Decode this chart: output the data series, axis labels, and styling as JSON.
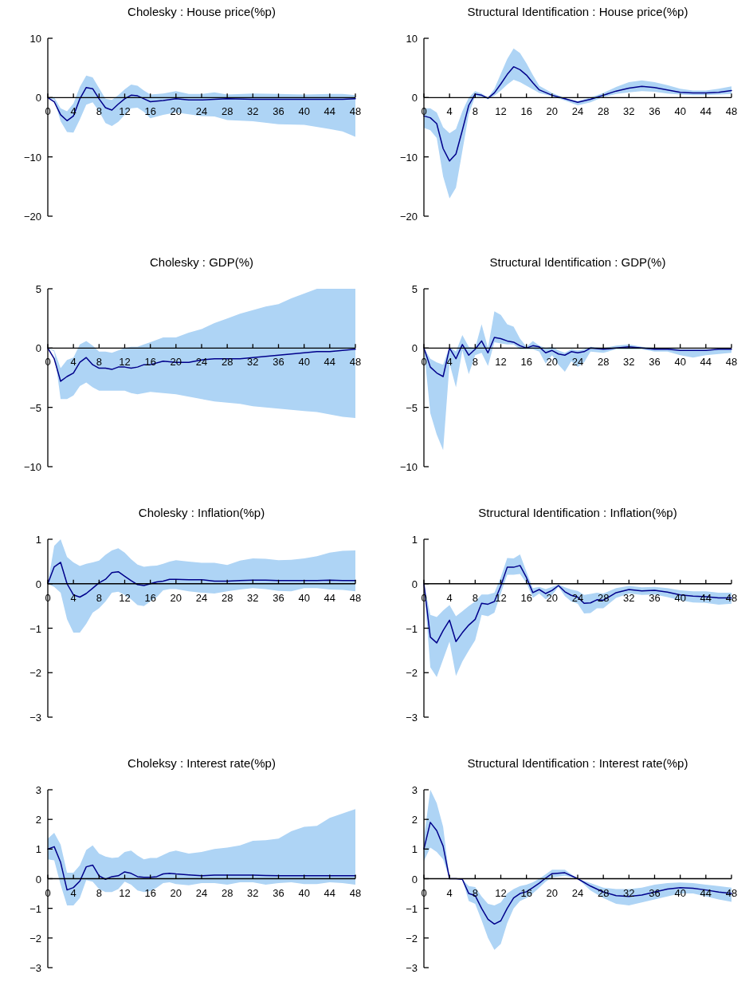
{
  "chart_data": [
    {
      "type": "line",
      "title": "Cholesky : House price(%p)",
      "xlim": [
        0,
        48
      ],
      "xticks": [
        0,
        4,
        8,
        12,
        16,
        20,
        24,
        28,
        32,
        36,
        40,
        44,
        48
      ],
      "ylim": [
        -20,
        10
      ],
      "yticks": [
        -20,
        -10,
        0,
        10
      ],
      "series": [
        {
          "color": "#00008b",
          "x": [
            0,
            1,
            2,
            3,
            4,
            5,
            6,
            7,
            8,
            9,
            10,
            11,
            12,
            13,
            14,
            15,
            16,
            18,
            20,
            22,
            24,
            26,
            28,
            32,
            36,
            40,
            44,
            46,
            48
          ],
          "values": [
            0,
            -0.7,
            -2.9,
            -3.9,
            -3.1,
            -0.2,
            1.7,
            1.5,
            -0.2,
            -1.7,
            -2.1,
            -1.1,
            -0.2,
            0.4,
            0.3,
            -0.2,
            -0.7,
            -0.5,
            -0.2,
            -0.4,
            -0.4,
            -0.3,
            -0.2,
            -0.3,
            -0.3,
            -0.3,
            -0.3,
            -0.3,
            -0.2
          ],
          "upper": [
            0,
            0,
            -1.8,
            -2.3,
            -1.0,
            1.8,
            3.7,
            3.4,
            1.6,
            -0.2,
            -0.4,
            0.4,
            1.4,
            2.2,
            2.0,
            1.2,
            0.5,
            0.7,
            1.1,
            0.6,
            0.6,
            0.9,
            0.5,
            0.7,
            0.6,
            0.5,
            0.6,
            0.6,
            0.4
          ],
          "lower": [
            0,
            -0.4,
            -4.0,
            -5.8,
            -5.9,
            -3.7,
            -1.2,
            -0.8,
            -2.3,
            -4.3,
            -4.8,
            -4.1,
            -2.9,
            -1.8,
            -1.7,
            -2.4,
            -3.5,
            -2.9,
            -2.5,
            -2.8,
            -3.1,
            -3.2,
            -3.8,
            -4.0,
            -4.5,
            -4.6,
            -5.3,
            -5.7,
            -6.6
          ]
        }
      ]
    },
    {
      "type": "line",
      "title": "Structural Identification : House price(%p)",
      "xlim": [
        0,
        48
      ],
      "xticks": [
        0,
        4,
        8,
        12,
        16,
        20,
        24,
        28,
        32,
        36,
        40,
        44,
        48
      ],
      "ylim": [
        -20,
        10
      ],
      "yticks": [
        -20,
        -10,
        0,
        10
      ],
      "series": [
        {
          "color": "#00008b",
          "x": [
            0,
            1,
            2,
            3,
            4,
            5,
            6,
            7,
            8,
            9,
            10,
            11,
            12,
            13,
            14,
            15,
            16,
            17,
            18,
            20,
            22,
            24,
            26,
            28,
            30,
            32,
            34,
            36,
            38,
            40,
            42,
            44,
            46,
            48
          ],
          "values": [
            -3.1,
            -3.4,
            -4.4,
            -8.6,
            -10.7,
            -9.5,
            -5.5,
            -1.3,
            0.6,
            0.4,
            -0.1,
            0.8,
            2.3,
            3.9,
            5.2,
            4.7,
            3.8,
            2.5,
            1.3,
            0.4,
            -0.2,
            -0.8,
            -0.3,
            0.4,
            1.1,
            1.6,
            1.9,
            1.7,
            1.3,
            0.9,
            0.8,
            0.8,
            0.9,
            1.2
          ],
          "upper": [
            -1.8,
            -1.8,
            -2.5,
            -5.0,
            -6.0,
            -5.3,
            -2.3,
            0.0,
            1.1,
            0.7,
            0.0,
            1.5,
            4.0,
            6.5,
            8.3,
            7.5,
            5.8,
            3.8,
            2.0,
            0.8,
            -0.1,
            -0.6,
            0,
            0.8,
            1.8,
            2.6,
            2.9,
            2.6,
            2.1,
            1.5,
            1.2,
            1.2,
            1.5,
            1.9
          ],
          "lower": [
            -5.1,
            -5.5,
            -6.8,
            -13.3,
            -17.0,
            -15.2,
            -9,
            -2.8,
            0.2,
            0.1,
            -0.3,
            0.3,
            1.2,
            2.2,
            3.0,
            2.6,
            2.0,
            1.4,
            0.8,
            0.2,
            -0.5,
            -1.3,
            -0.8,
            0.1,
            0.6,
            0.9,
            1.1,
            1.0,
            0.7,
            0.5,
            0.4,
            0.4,
            0.5,
            0.6
          ]
        }
      ]
    },
    {
      "type": "line",
      "title": "Cholesky : GDP(%)",
      "xlim": [
        0,
        48
      ],
      "xticks": [
        0,
        4,
        8,
        12,
        16,
        20,
        24,
        28,
        32,
        36,
        40,
        44,
        48
      ],
      "ylim": [
        -10,
        5
      ],
      "yticks": [
        -10,
        -5,
        0,
        5
      ],
      "series": [
        {
          "color": "#00008b",
          "x": [
            0,
            1,
            2,
            3,
            4,
            5,
            6,
            7,
            8,
            9,
            10,
            11,
            12,
            13,
            14,
            15,
            16,
            18,
            20,
            22,
            24,
            26,
            28,
            30,
            32,
            34,
            36,
            38,
            40,
            42,
            44,
            46,
            48
          ],
          "values": [
            0,
            -0.9,
            -2.8,
            -2.4,
            -2.1,
            -1.2,
            -0.8,
            -1.4,
            -1.7,
            -1.7,
            -1.8,
            -1.6,
            -1.6,
            -1.7,
            -1.6,
            -1.4,
            -1.4,
            -1.1,
            -1.2,
            -1.2,
            -1.0,
            -0.9,
            -0.9,
            -0.9,
            -0.8,
            -0.7,
            -0.6,
            -0.5,
            -0.4,
            -0.3,
            -0.3,
            -0.2,
            -0.1
          ],
          "upper": [
            0,
            -0.2,
            -1.7,
            -1.0,
            -0.8,
            0.3,
            0.6,
            0.2,
            -0.3,
            -0.3,
            -0.4,
            -0.2,
            0,
            0.1,
            0.1,
            0.3,
            0.5,
            0.9,
            0.9,
            1.3,
            1.6,
            2.1,
            2.5,
            2.9,
            3.2,
            3.5,
            3.7,
            4.2,
            4.6,
            5,
            5,
            5,
            5
          ],
          "lower": [
            0,
            -0.3,
            -4.3,
            -4.3,
            -4.0,
            -3.2,
            -2.9,
            -3.3,
            -3.6,
            -3.6,
            -3.6,
            -3.6,
            -3.6,
            -3.8,
            -3.9,
            -3.8,
            -3.7,
            -3.8,
            -3.9,
            -4.1,
            -4.3,
            -4.5,
            -4.6,
            -4.7,
            -4.9,
            -5.0,
            -5.1,
            -5.2,
            -5.3,
            -5.4,
            -5.6,
            -5.8,
            -5.9
          ]
        }
      ]
    },
    {
      "type": "line",
      "title": "Structural Identification : GDP(%)",
      "xlim": [
        0,
        48
      ],
      "xticks": [
        0,
        4,
        8,
        12,
        16,
        20,
        24,
        28,
        32,
        36,
        40,
        44,
        48
      ],
      "ylim": [
        -10,
        5
      ],
      "yticks": [
        -10,
        -5,
        0,
        5
      ],
      "series": [
        {
          "color": "#00008b",
          "x": [
            0,
            1,
            2,
            3,
            4,
            5,
            6,
            7,
            8,
            9,
            10,
            11,
            12,
            13,
            14,
            15,
            16,
            17,
            18,
            19,
            20,
            21,
            22,
            23,
            24,
            25,
            26,
            28,
            30,
            32,
            34,
            36,
            38,
            40,
            42,
            44,
            46,
            48
          ],
          "values": [
            0,
            -1.6,
            -2.1,
            -2.4,
            0,
            -0.9,
            0.3,
            -0.6,
            -0.1,
            0.6,
            -0.4,
            0.9,
            0.8,
            0.6,
            0.5,
            0.2,
            0,
            0.2,
            0.1,
            -0.4,
            -0.2,
            -0.5,
            -0.6,
            -0.3,
            -0.4,
            -0.3,
            0,
            -0.1,
            0,
            0.1,
            0,
            -0.1,
            -0.1,
            -0.2,
            -0.2,
            -0.2,
            -0.1,
            -0.1
          ],
          "upper": [
            0,
            -0.9,
            -1.2,
            -1.4,
            0.1,
            -0.3,
            1.1,
            0.1,
            0,
            2.0,
            0,
            3.1,
            2.8,
            2.0,
            1.8,
            0.8,
            0.1,
            0.6,
            0.2,
            0,
            0.1,
            -0.2,
            -0.4,
            -0.1,
            -0.2,
            -0.1,
            0.1,
            0,
            0.2,
            0.3,
            0.1,
            0,
            0,
            -0.1,
            -0.1,
            -0.1,
            -0.1,
            0
          ],
          "lower": [
            0,
            -5.5,
            -7.3,
            -8.6,
            -1.3,
            -3.3,
            -0.2,
            -2.2,
            -0.6,
            -0.4,
            -1.5,
            0.5,
            0.4,
            0.3,
            0.3,
            -0.1,
            -0.1,
            -0.1,
            -0.3,
            -1.3,
            -0.6,
            -1.4,
            -2.0,
            -1.1,
            -1.6,
            -1.2,
            -0.3,
            -0.4,
            -0.1,
            -0.1,
            -0.1,
            -0.3,
            -0.3,
            -0.6,
            -0.8,
            -0.6,
            -0.5,
            -0.4
          ]
        }
      ]
    },
    {
      "type": "line",
      "title": "Cholesky : Inflation(%p)",
      "xlim": [
        0,
        48
      ],
      "xticks": [
        0,
        4,
        8,
        12,
        16,
        20,
        24,
        28,
        32,
        36,
        40,
        44,
        48
      ],
      "ylim": [
        -3,
        1
      ],
      "yticks": [
        -3,
        -2,
        -1,
        0,
        1
      ],
      "series": [
        {
          "color": "#00008b",
          "x": [
            0,
            1,
            2,
            3,
            4,
            5,
            6,
            7,
            8,
            9,
            10,
            11,
            12,
            13,
            14,
            15,
            16,
            17,
            18,
            19,
            20,
            22,
            24,
            26,
            28,
            30,
            32,
            34,
            36,
            38,
            40,
            42,
            44,
            46,
            48
          ],
          "values": [
            0,
            0.38,
            0.48,
            0,
            -0.25,
            -0.3,
            -0.22,
            -0.1,
            0.02,
            0.1,
            0.25,
            0.27,
            0.17,
            0.07,
            -0.02,
            -0.04,
            0,
            0.04,
            0.06,
            0.1,
            0.1,
            0.09,
            0.09,
            0.06,
            0.06,
            0.07,
            0.08,
            0.08,
            0.07,
            0.07,
            0.07,
            0.07,
            0.08,
            0.07,
            0.07
          ],
          "upper": [
            0,
            0.85,
            1.0,
            0.6,
            0.48,
            0.4,
            0.45,
            0.48,
            0.52,
            0.65,
            0.75,
            0.8,
            0.7,
            0.55,
            0.43,
            0.38,
            0.4,
            0.41,
            0.45,
            0.5,
            0.53,
            0.5,
            0.47,
            0.47,
            0.42,
            0.52,
            0.57,
            0.56,
            0.53,
            0.54,
            0.57,
            0.62,
            0.7,
            0.74,
            0.75
          ],
          "lower": [
            0,
            -0.07,
            -0.2,
            -0.8,
            -1.1,
            -1.1,
            -0.9,
            -0.65,
            -0.55,
            -0.4,
            -0.2,
            -0.18,
            -0.25,
            -0.35,
            -0.48,
            -0.5,
            -0.4,
            -0.3,
            -0.15,
            -0.12,
            -0.12,
            -0.17,
            -0.2,
            -0.22,
            -0.17,
            -0.13,
            -0.1,
            -0.12,
            -0.16,
            -0.17,
            -0.1,
            -0.1,
            -0.13,
            -0.14,
            -0.17
          ]
        }
      ]
    },
    {
      "type": "line",
      "title": "Structural Identification : Inflation(%p)",
      "xlim": [
        0,
        48
      ],
      "xticks": [
        0,
        4,
        8,
        12,
        16,
        20,
        24,
        28,
        32,
        36,
        40,
        44,
        48
      ],
      "ylim": [
        -3,
        1
      ],
      "yticks": [
        -3,
        -2,
        -1,
        0,
        1
      ],
      "series": [
        {
          "color": "#00008b",
          "x": [
            0,
            1,
            2,
            3,
            4,
            5,
            6,
            7,
            8,
            9,
            10,
            11,
            12,
            13,
            14,
            15,
            16,
            17,
            18,
            19,
            20,
            21,
            22,
            23,
            24,
            25,
            26,
            27,
            28,
            30,
            32,
            34,
            36,
            38,
            40,
            42,
            44,
            46,
            48
          ],
          "values": [
            0,
            -1.2,
            -1.33,
            -1.05,
            -0.82,
            -1.3,
            -1.1,
            -0.93,
            -0.8,
            -0.44,
            -0.46,
            -0.4,
            -0.05,
            0.37,
            0.37,
            0.41,
            0.14,
            -0.2,
            -0.13,
            -0.22,
            -0.15,
            -0.04,
            -0.18,
            -0.26,
            -0.3,
            -0.44,
            -0.43,
            -0.36,
            -0.37,
            -0.2,
            -0.13,
            -0.16,
            -0.15,
            -0.19,
            -0.25,
            -0.28,
            -0.29,
            -0.32,
            -0.32
          ],
          "upper": [
            0,
            -0.7,
            -0.75,
            -0.6,
            -0.48,
            -0.73,
            -0.62,
            -0.5,
            -0.4,
            -0.24,
            -0.24,
            -0.2,
            0.15,
            0.58,
            0.57,
            0.66,
            0.27,
            -0.1,
            -0.07,
            -0.12,
            -0.07,
            -0.02,
            -0.08,
            -0.13,
            -0.16,
            -0.25,
            -0.23,
            -0.2,
            -0.22,
            -0.1,
            -0.05,
            -0.08,
            -0.07,
            -0.1,
            -0.15,
            -0.17,
            -0.17,
            -0.2,
            -0.2
          ],
          "lower": [
            0,
            -1.88,
            -2.1,
            -1.7,
            -1.3,
            -2.07,
            -1.75,
            -1.5,
            -1.27,
            -0.7,
            -0.73,
            -0.65,
            -0.22,
            0.2,
            0.2,
            0.22,
            0.02,
            -0.32,
            -0.22,
            -0.35,
            -0.25,
            -0.07,
            -0.28,
            -0.4,
            -0.45,
            -0.67,
            -0.66,
            -0.55,
            -0.55,
            -0.32,
            -0.22,
            -0.25,
            -0.24,
            -0.3,
            -0.37,
            -0.42,
            -0.43,
            -0.47,
            -0.45
          ]
        }
      ]
    },
    {
      "type": "line",
      "title": "Choleksy : Interest rate(%p)",
      "xlim": [
        0,
        48
      ],
      "xticks": [
        0,
        4,
        8,
        12,
        16,
        20,
        24,
        28,
        32,
        36,
        40,
        44,
        48
      ],
      "ylim": [
        -3,
        3
      ],
      "yticks": [
        -3,
        -2,
        -1,
        0,
        1,
        2,
        3
      ],
      "series": [
        {
          "color": "#00008b",
          "x": [
            0,
            1,
            2,
            3,
            4,
            5,
            6,
            7,
            8,
            9,
            10,
            11,
            12,
            13,
            14,
            15,
            16,
            17,
            18,
            19,
            20,
            22,
            24,
            26,
            28,
            30,
            32,
            34,
            36,
            38,
            40,
            42,
            44,
            46,
            48
          ],
          "values": [
            1.0,
            1.08,
            0.55,
            -0.38,
            -0.3,
            -0.08,
            0.4,
            0.46,
            0.1,
            -0.02,
            0.07,
            0.1,
            0.23,
            0.18,
            0.07,
            0.05,
            0.05,
            0.07,
            0.16,
            0.18,
            0.16,
            0.13,
            0.1,
            0.12,
            0.12,
            0.12,
            0.12,
            0.11,
            0.1,
            0.1,
            0.1,
            0.1,
            0.1,
            0.1,
            0.1
          ],
          "upper": [
            1.35,
            1.55,
            1.15,
            0.2,
            0.2,
            0.45,
            0.97,
            1.12,
            0.85,
            0.75,
            0.7,
            0.72,
            0.9,
            0.95,
            0.78,
            0.65,
            0.7,
            0.7,
            0.8,
            0.9,
            0.95,
            0.85,
            0.9,
            1.0,
            1.05,
            1.12,
            1.28,
            1.3,
            1.35,
            1.6,
            1.75,
            1.78,
            2.05,
            2.2,
            2.35
          ],
          "lower": [
            0.65,
            0.62,
            -0.2,
            -0.9,
            -0.9,
            -0.65,
            -0.05,
            -0.1,
            -0.35,
            -0.45,
            -0.45,
            -0.35,
            -0.1,
            -0.2,
            -0.4,
            -0.45,
            -0.42,
            -0.3,
            -0.15,
            -0.12,
            -0.18,
            -0.22,
            -0.15,
            -0.15,
            -0.2,
            -0.12,
            -0.12,
            -0.2,
            -0.15,
            -0.12,
            -0.18,
            -0.18,
            -0.12,
            -0.15,
            -0.2
          ]
        }
      ]
    },
    {
      "type": "line",
      "title": "Structural Identification : Interest rate(%p)",
      "xlim": [
        0,
        48
      ],
      "xticks": [
        0,
        4,
        8,
        12,
        16,
        20,
        24,
        28,
        32,
        36,
        40,
        44,
        48
      ],
      "ylim": [
        -3,
        3
      ],
      "yticks": [
        -3,
        -2,
        -1,
        0,
        1,
        2,
        3
      ],
      "series": [
        {
          "color": "#00008b",
          "x": [
            0,
            1,
            2,
            3,
            4,
            5,
            6,
            7,
            8,
            9,
            10,
            11,
            12,
            13,
            14,
            15,
            16,
            17,
            18,
            19,
            20,
            22,
            24,
            26,
            28,
            30,
            32,
            34,
            36,
            38,
            40,
            42,
            44,
            46,
            48
          ],
          "values": [
            1.0,
            1.9,
            1.62,
            1.1,
            0,
            0,
            -0.02,
            -0.5,
            -0.57,
            -1.0,
            -1.37,
            -1.53,
            -1.42,
            -1.0,
            -0.65,
            -0.5,
            -0.44,
            -0.3,
            -0.15,
            0.02,
            0.17,
            0.2,
            0,
            -0.25,
            -0.45,
            -0.57,
            -0.6,
            -0.55,
            -0.45,
            -0.35,
            -0.3,
            -0.32,
            -0.38,
            -0.45,
            -0.5
          ],
          "upper": [
            1.35,
            3.0,
            2.55,
            1.75,
            0,
            0,
            -0.02,
            -0.25,
            -0.28,
            -0.6,
            -0.85,
            -0.9,
            -0.8,
            -0.5,
            -0.35,
            -0.25,
            -0.2,
            -0.12,
            0,
            0.15,
            0.3,
            0.3,
            0,
            -0.15,
            -0.3,
            -0.35,
            -0.35,
            -0.3,
            -0.2,
            -0.15,
            -0.13,
            -0.15,
            -0.2,
            -0.25,
            -0.3
          ],
          "lower": [
            0.6,
            1.05,
            0.9,
            0.65,
            0,
            0,
            -0.02,
            -0.75,
            -0.85,
            -1.4,
            -2.0,
            -2.4,
            -2.2,
            -1.5,
            -1.0,
            -0.75,
            -0.65,
            -0.5,
            -0.3,
            -0.1,
            0.05,
            0.1,
            0,
            -0.4,
            -0.65,
            -0.85,
            -0.9,
            -0.8,
            -0.7,
            -0.6,
            -0.5,
            -0.5,
            -0.6,
            -0.7,
            -0.78
          ]
        }
      ]
    }
  ]
}
